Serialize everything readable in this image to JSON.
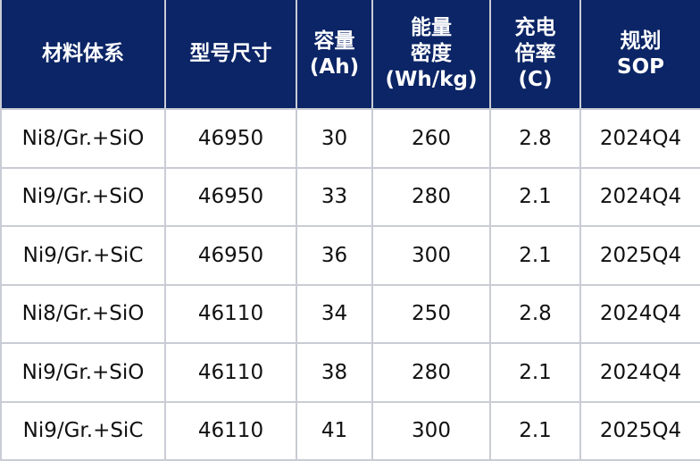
{
  "table": {
    "header": [
      [
        "材料体系"
      ],
      [
        "型号尺寸"
      ],
      [
        "容量",
        "(Ah)"
      ],
      [
        "能量",
        "密度",
        "(Wh/kg)"
      ],
      [
        "充电",
        "倍率",
        "(C)"
      ],
      [
        "规划",
        "SOP"
      ]
    ],
    "rows": [
      [
        "Ni8/Gr.+SiO",
        46950,
        30,
        260,
        2.8,
        "2024Q4"
      ],
      [
        "Ni9/Gr.+SiO",
        46950,
        33,
        280,
        2.1,
        "2024Q4"
      ],
      [
        "Ni9/Gr.+SiC",
        46950,
        36,
        300,
        2.1,
        "2025Q4"
      ],
      [
        "Ni8/Gr.+SiO",
        46110,
        34,
        250,
        2.8,
        "2024Q4"
      ],
      [
        "Ni9/Gr.+SiO",
        46110,
        38,
        280,
        2.1,
        "2024Q4"
      ],
      [
        "Ni9/Gr.+SiC",
        46110,
        41,
        300,
        2.1,
        "2025Q4"
      ]
    ]
  }
}
